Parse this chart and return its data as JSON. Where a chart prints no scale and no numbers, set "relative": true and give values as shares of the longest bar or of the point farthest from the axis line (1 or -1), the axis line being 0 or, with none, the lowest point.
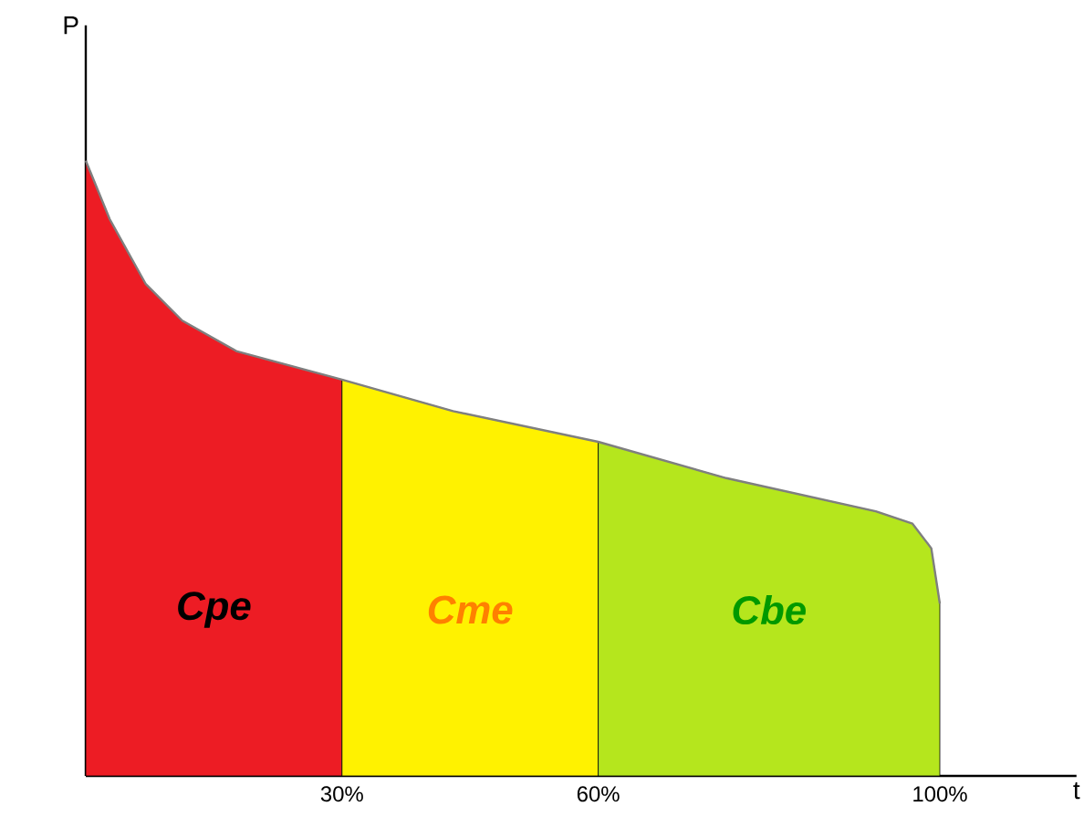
{
  "chart_data": {
    "type": "area",
    "relative": true,
    "xlabel": "t",
    "ylabel": "P",
    "xlim": [
      0,
      116
    ],
    "xticks": [
      {
        "value": 30,
        "label": "30%"
      },
      {
        "value": 60,
        "label": "60%"
      },
      {
        "value": 100,
        "label": "100%"
      }
    ],
    "series": [
      {
        "name": "Cpe",
        "color": "#ed1c24",
        "x": [
          0,
          2.8,
          7,
          11.3,
          17.7,
          30
        ],
        "values": [
          1.0,
          0.905,
          0.8,
          0.74,
          0.69,
          0.644
        ]
      },
      {
        "name": "Cme",
        "color": "#fff200",
        "x": [
          30,
          43,
          60
        ],
        "values": [
          0.644,
          0.593,
          0.543
        ]
      },
      {
        "name": "Cbe",
        "color": "#b5e61d",
        "x": [
          60,
          75,
          92.5,
          96.8,
          99,
          100
        ],
        "values": [
          0.543,
          0.484,
          0.43,
          0.41,
          0.37,
          0.28
        ]
      },
      {
        "type": "line",
        "color": "#7f7f7f",
        "x": [
          0,
          2.8,
          7,
          11.3,
          17.7,
          30,
          43,
          60,
          75,
          92.5,
          96.8,
          99,
          100
        ],
        "values": [
          1.0,
          0.905,
          0.8,
          0.74,
          0.69,
          0.644,
          0.593,
          0.543,
          0.484,
          0.43,
          0.41,
          0.37,
          0.28
        ]
      }
    ]
  }
}
